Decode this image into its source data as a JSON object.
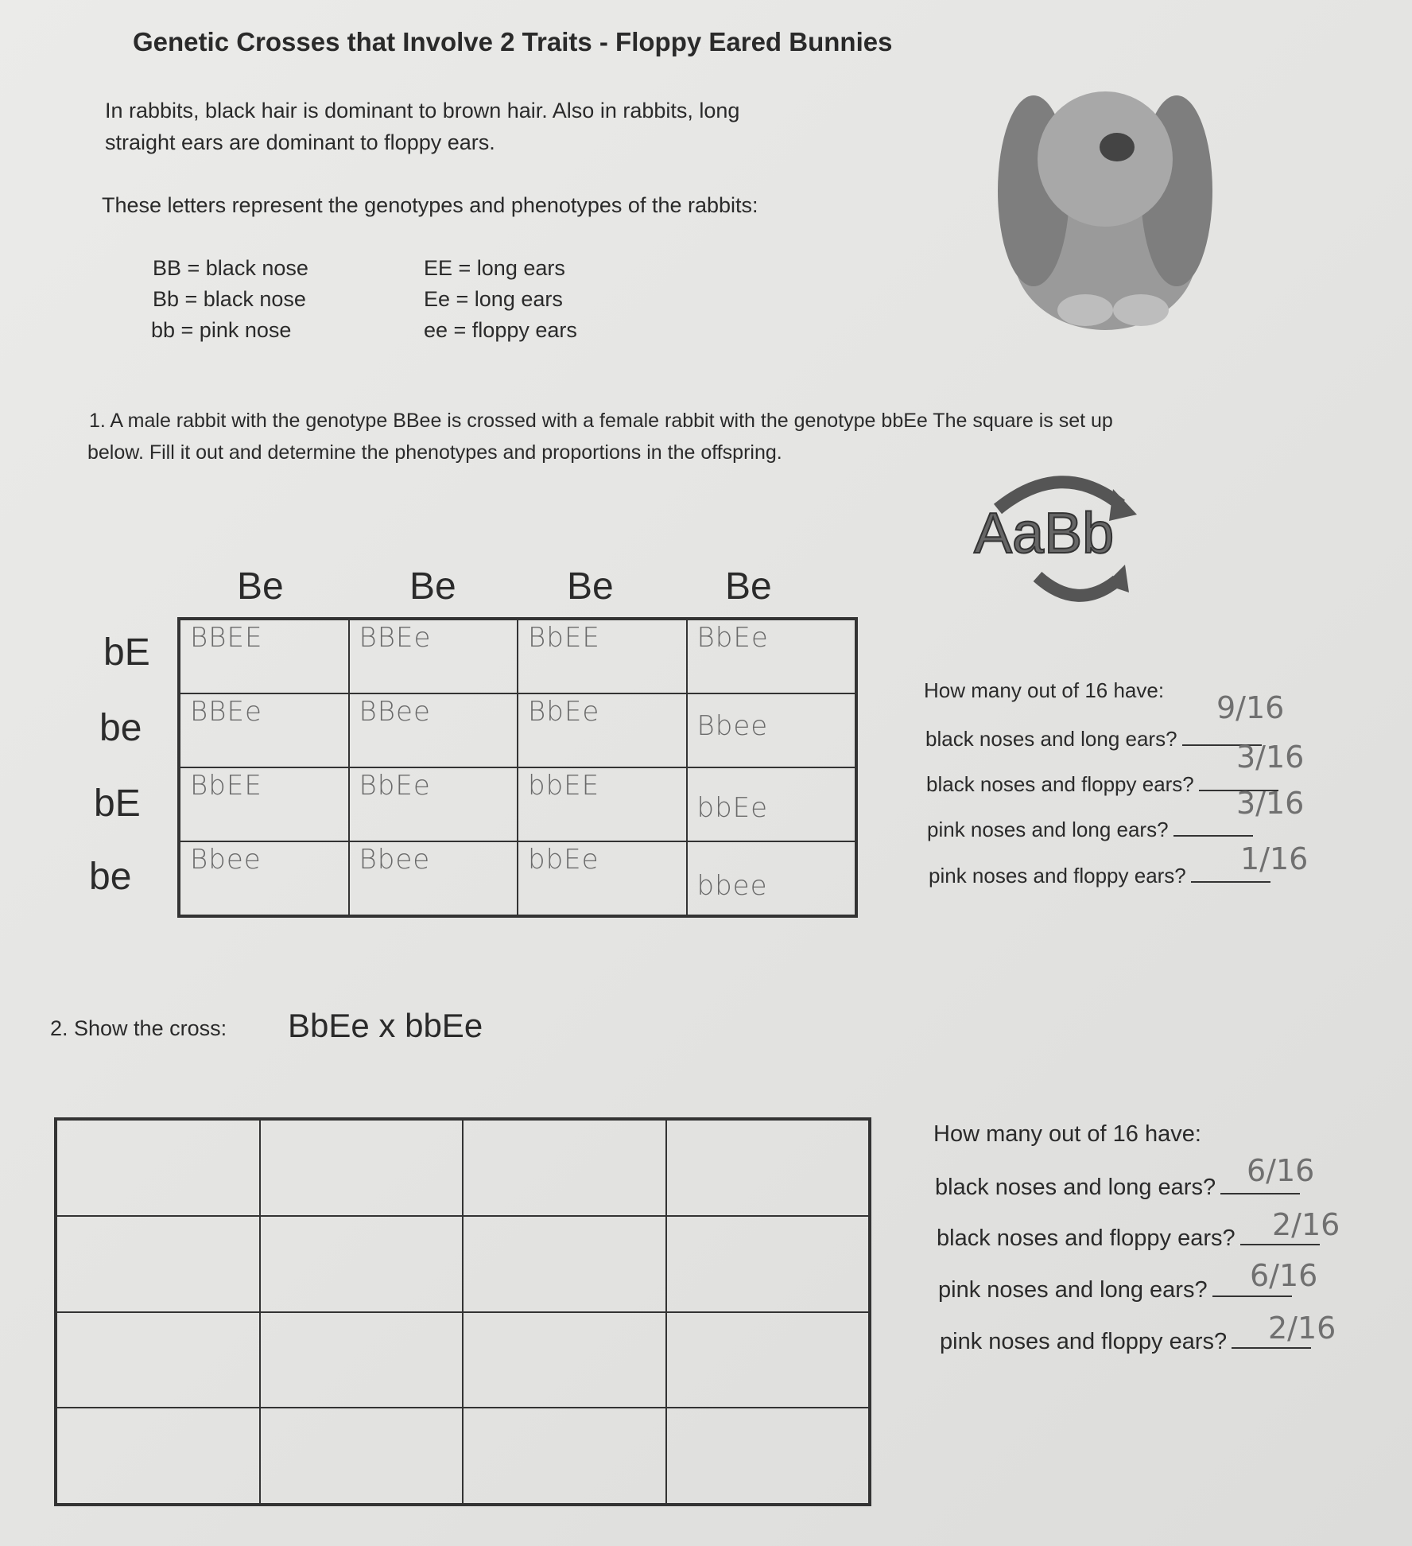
{
  "title": "Genetic Crosses that Involve 2 Traits - Floppy Eared Bunnies",
  "intro": [
    "In rabbits,  black hair is dominant to brown hair.  Also in rabbits, long",
    "straight ears are dominant to floppy ears."
  ],
  "key_intro": "These letters represent the genotypes and phenotypes of the rabbits:",
  "key": [
    {
      "nose": "BB  = black nose",
      "ears": "EE = long ears"
    },
    {
      "nose": "Bb =  black nose",
      "ears": "Ee = long ears"
    },
    {
      "nose": "bb =  pink nose",
      "ears": "ee = floppy ears"
    }
  ],
  "q1": {
    "text": [
      "1.  A male rabbit with the genotype BBee is crossed with a female rabbit with the genotype bbEe The square is set up",
      "below.  Fill it out and determine the phenotypes and proportions in the offspring."
    ],
    "col_headers": [
      "Be",
      "Be",
      "Be",
      "Be"
    ],
    "row_headers": [
      "bE",
      "be",
      "bE",
      "be"
    ],
    "cells": [
      [
        "BBEE",
        "BBEe",
        "BbEE",
        "BbEe"
      ],
      [
        "BBEe",
        "BBee",
        "BbEe",
        "Bbee"
      ],
      [
        "BbEE",
        "BbEe",
        "bbEE",
        "bbEe"
      ],
      [
        "Bbee",
        "Bbee",
        "bbEe",
        "bbee"
      ]
    ],
    "question_header": "How many out of 16 have:",
    "questions": [
      {
        "label": "black noses and long ears?",
        "answer": "9/16"
      },
      {
        "label": "black noses and floppy ears?",
        "answer": "3/16"
      },
      {
        "label": "pink noses and long ears?",
        "answer": "3/16"
      },
      {
        "label": "pink noses and floppy ears?",
        "answer": "1/16"
      }
    ]
  },
  "logo_text": "AaBb",
  "q2": {
    "label": "2.  Show the cross:",
    "cross": "BbEe x bbEe",
    "question_header": "How many out of 16 have:",
    "questions": [
      {
        "label": "black noses and long ears?",
        "answer": "6/16"
      },
      {
        "label": "black noses and floppy ears?",
        "answer": "2/16"
      },
      {
        "label": "pink noses and long ears?",
        "answer": "6/16"
      },
      {
        "label": "pink noses and floppy ears?",
        "answer": "2/16"
      }
    ]
  }
}
